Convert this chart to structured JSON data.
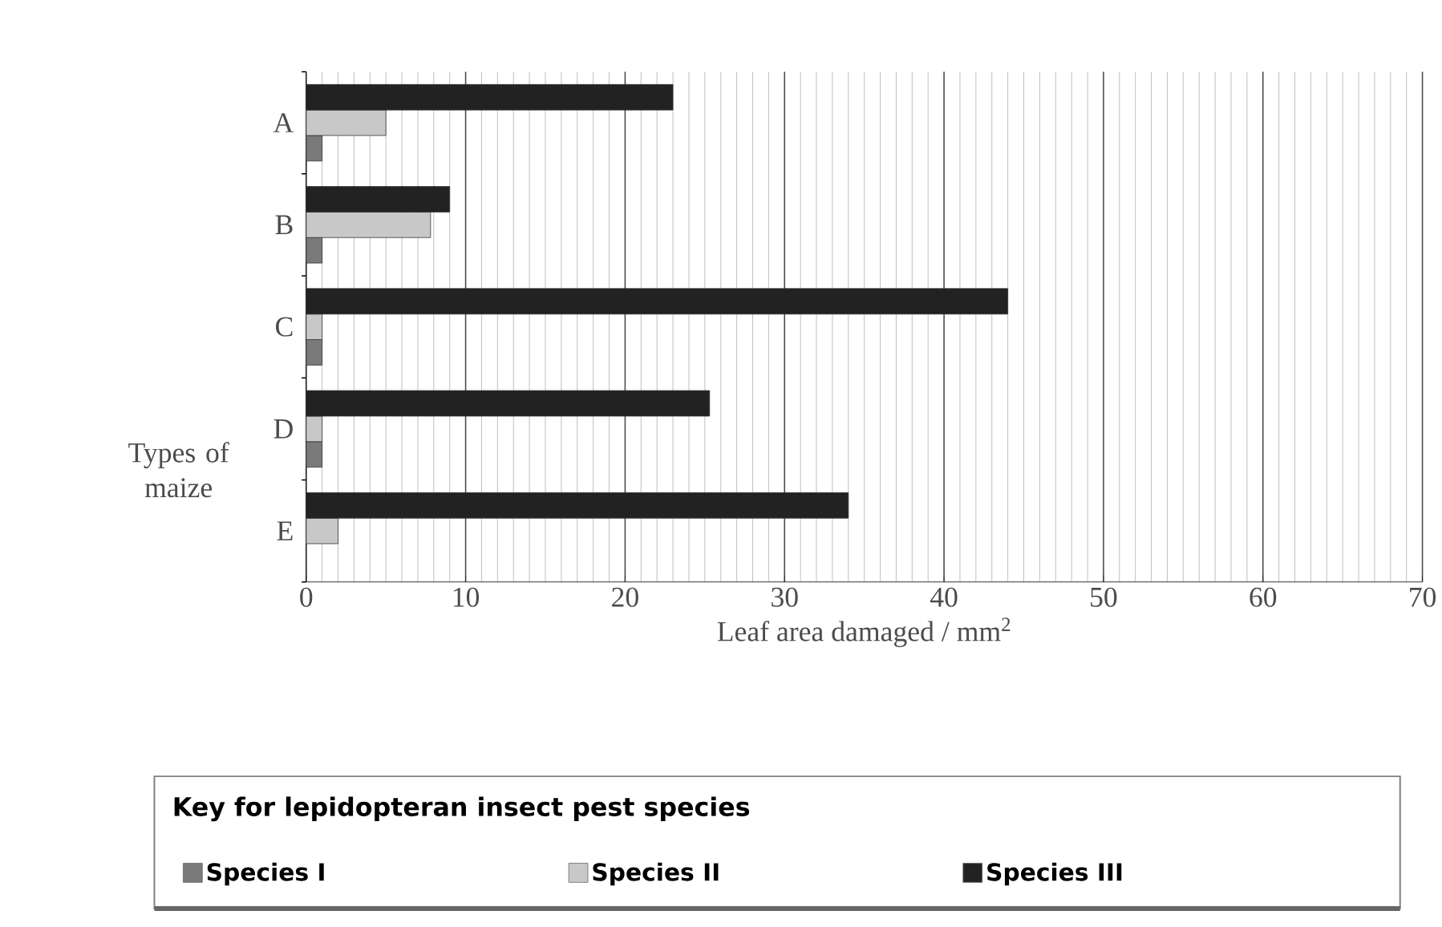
{
  "chart_data": {
    "type": "bar",
    "orientation": "horizontal",
    "xlabel": "Leaf area damaged / mm$^{2}$",
    "ylabel": "Types of maize",
    "categories": [
      "A",
      "B",
      "C",
      "D",
      "E"
    ],
    "series": [
      {
        "name": "Species I",
        "color": "#7a7a7a",
        "values": [
          1,
          1,
          1,
          1,
          null
        ]
      },
      {
        "name": "Species II",
        "color": "#c8c8c8",
        "values": [
          5,
          7.8,
          1,
          1,
          2
        ]
      },
      {
        "name": "Species III",
        "color": "#222222",
        "values": [
          23,
          9,
          44,
          25.3,
          34
        ]
      }
    ],
    "xlim": [
      0,
      70
    ],
    "xticks": [
      0,
      10,
      20,
      30,
      40,
      50,
      60,
      70
    ],
    "grid": "x",
    "legend": "bottom",
    "legend_title": "Key for lepidopteran insect pest species"
  }
}
